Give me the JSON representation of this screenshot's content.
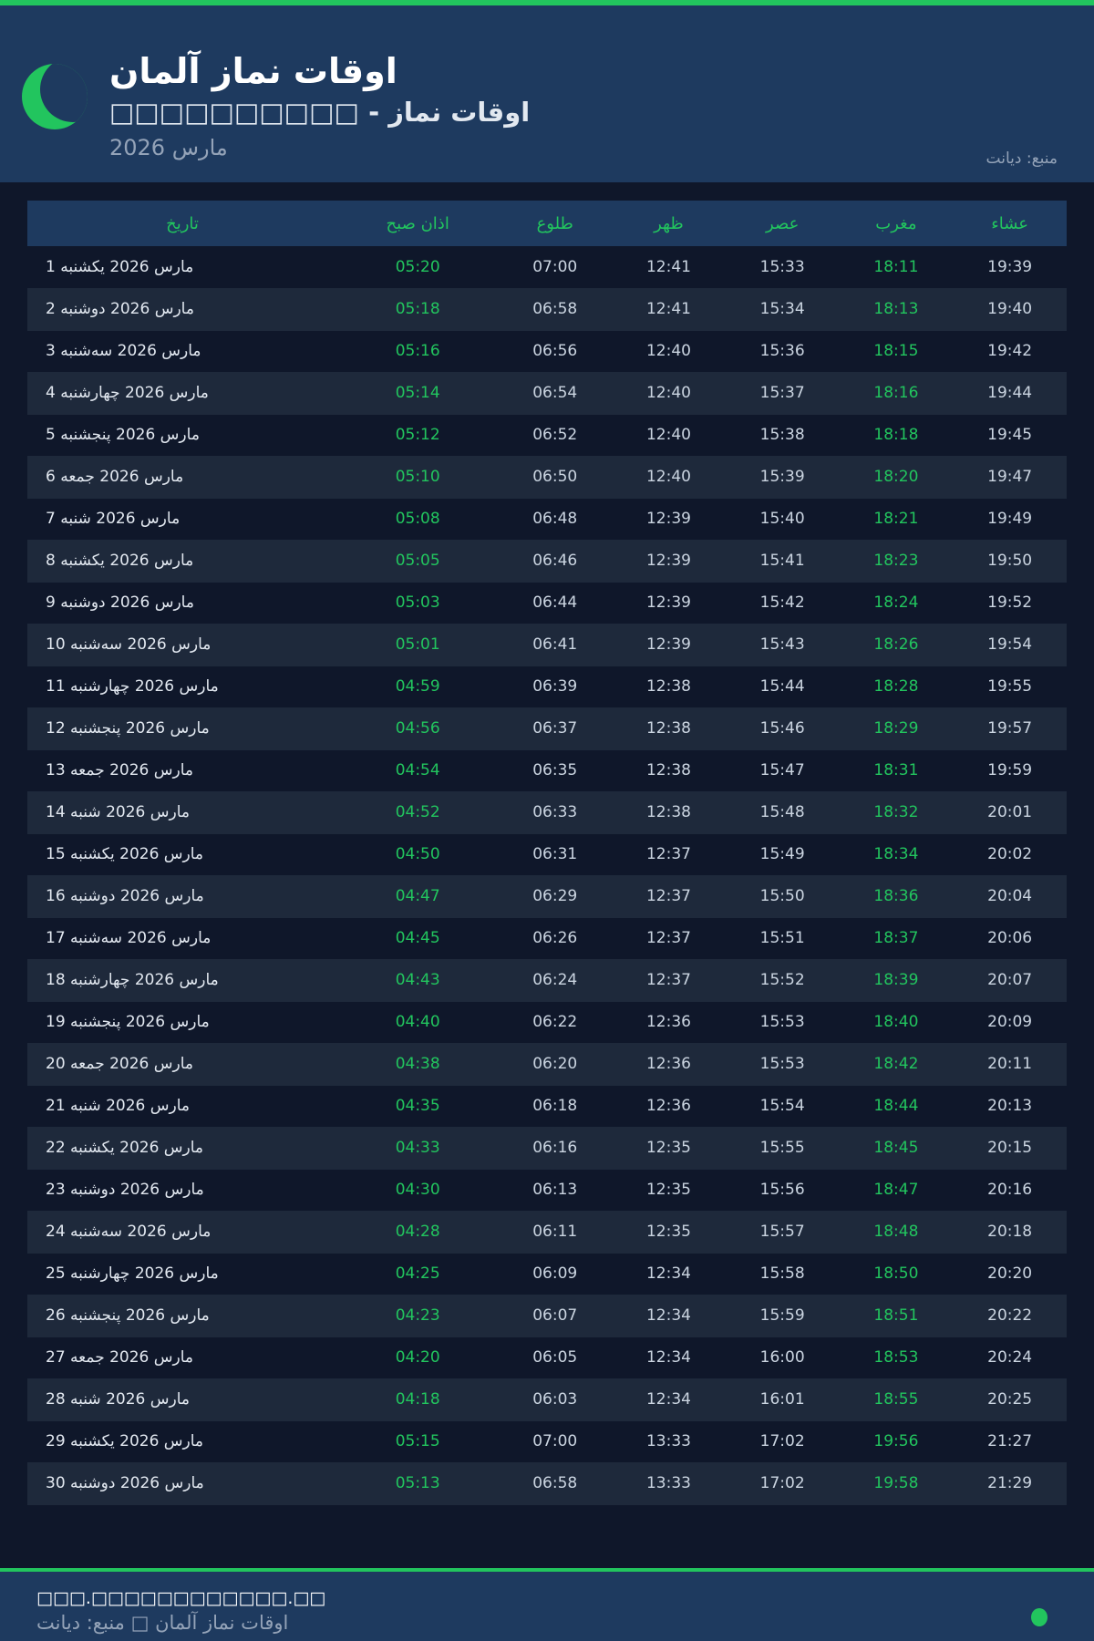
{
  "header": {
    "title": "اوقات نماز آلمان",
    "subtitle": "□□□□□□□□□□ - اوقات نماز",
    "month": "مارس 2026",
    "source": "منبع: دیانت"
  },
  "table": {
    "columns": [
      "تاریخ",
      "اذان صبح",
      "طلوع",
      "ظهر",
      "عصر",
      "مغرب",
      "عشاء"
    ],
    "rows": [
      [
        "1 مارس 2026 یکشنبه",
        "05:20",
        "07:00",
        "12:41",
        "15:33",
        "18:11",
        "19:39"
      ],
      [
        "2 مارس 2026 دوشنبه",
        "05:18",
        "06:58",
        "12:41",
        "15:34",
        "18:13",
        "19:40"
      ],
      [
        "3 مارس 2026 سه‌شنبه",
        "05:16",
        "06:56",
        "12:40",
        "15:36",
        "18:15",
        "19:42"
      ],
      [
        "4 مارس 2026 چهارشنبه",
        "05:14",
        "06:54",
        "12:40",
        "15:37",
        "18:16",
        "19:44"
      ],
      [
        "5 مارس 2026 پنجشنبه",
        "05:12",
        "06:52",
        "12:40",
        "15:38",
        "18:18",
        "19:45"
      ],
      [
        "6 مارس 2026 جمعه",
        "05:10",
        "06:50",
        "12:40",
        "15:39",
        "18:20",
        "19:47"
      ],
      [
        "7 مارس 2026 شنبه",
        "05:08",
        "06:48",
        "12:39",
        "15:40",
        "18:21",
        "19:49"
      ],
      [
        "8 مارس 2026 یکشنبه",
        "05:05",
        "06:46",
        "12:39",
        "15:41",
        "18:23",
        "19:50"
      ],
      [
        "9 مارس 2026 دوشنبه",
        "05:03",
        "06:44",
        "12:39",
        "15:42",
        "18:24",
        "19:52"
      ],
      [
        "10 مارس 2026 سه‌شنبه",
        "05:01",
        "06:41",
        "12:39",
        "15:43",
        "18:26",
        "19:54"
      ],
      [
        "11 مارس 2026 چهارشنبه",
        "04:59",
        "06:39",
        "12:38",
        "15:44",
        "18:28",
        "19:55"
      ],
      [
        "12 مارس 2026 پنجشنبه",
        "04:56",
        "06:37",
        "12:38",
        "15:46",
        "18:29",
        "19:57"
      ],
      [
        "13 مارس 2026 جمعه",
        "04:54",
        "06:35",
        "12:38",
        "15:47",
        "18:31",
        "19:59"
      ],
      [
        "14 مارس 2026 شنبه",
        "04:52",
        "06:33",
        "12:38",
        "15:48",
        "18:32",
        "20:01"
      ],
      [
        "15 مارس 2026 یکشنبه",
        "04:50",
        "06:31",
        "12:37",
        "15:49",
        "18:34",
        "20:02"
      ],
      [
        "16 مارس 2026 دوشنبه",
        "04:47",
        "06:29",
        "12:37",
        "15:50",
        "18:36",
        "20:04"
      ],
      [
        "17 مارس 2026 سه‌شنبه",
        "04:45",
        "06:26",
        "12:37",
        "15:51",
        "18:37",
        "20:06"
      ],
      [
        "18 مارس 2026 چهارشنبه",
        "04:43",
        "06:24",
        "12:37",
        "15:52",
        "18:39",
        "20:07"
      ],
      [
        "19 مارس 2026 پنجشنبه",
        "04:40",
        "06:22",
        "12:36",
        "15:53",
        "18:40",
        "20:09"
      ],
      [
        "20 مارس 2026 جمعه",
        "04:38",
        "06:20",
        "12:36",
        "15:53",
        "18:42",
        "20:11"
      ],
      [
        "21 مارس 2026 شنبه",
        "04:35",
        "06:18",
        "12:36",
        "15:54",
        "18:44",
        "20:13"
      ],
      [
        "22 مارس 2026 یکشنبه",
        "04:33",
        "06:16",
        "12:35",
        "15:55",
        "18:45",
        "20:15"
      ],
      [
        "23 مارس 2026 دوشنبه",
        "04:30",
        "06:13",
        "12:35",
        "15:56",
        "18:47",
        "20:16"
      ],
      [
        "24 مارس 2026 سه‌شنبه",
        "04:28",
        "06:11",
        "12:35",
        "15:57",
        "18:48",
        "20:18"
      ],
      [
        "25 مارس 2026 چهارشنبه",
        "04:25",
        "06:09",
        "12:34",
        "15:58",
        "18:50",
        "20:20"
      ],
      [
        "26 مارس 2026 پنجشنبه",
        "04:23",
        "06:07",
        "12:34",
        "15:59",
        "18:51",
        "20:22"
      ],
      [
        "27 مارس 2026 جمعه",
        "04:20",
        "06:05",
        "12:34",
        "16:00",
        "18:53",
        "20:24"
      ],
      [
        "28 مارس 2026 شنبه",
        "04:18",
        "06:03",
        "12:34",
        "16:01",
        "18:55",
        "20:25"
      ],
      [
        "29 مارس 2026 یکشنبه",
        "05:15",
        "07:00",
        "13:33",
        "17:02",
        "19:56",
        "21:27"
      ],
      [
        "30 مارس 2026 دوشنبه",
        "05:13",
        "06:58",
        "13:33",
        "17:02",
        "19:58",
        "21:29"
      ]
    ]
  },
  "footer": {
    "url": "□□□.□□□□□□□□□□□□.□□",
    "text": "اوقات نماز آلمان □ منبع: دیانت"
  },
  "colors": {
    "accent": "#22c55e",
    "header_bg": "#1e3a5f",
    "page_bg": "#0f172a"
  },
  "icons": {
    "logo": "crescent-moon-icon",
    "status": "status-dot-icon"
  }
}
